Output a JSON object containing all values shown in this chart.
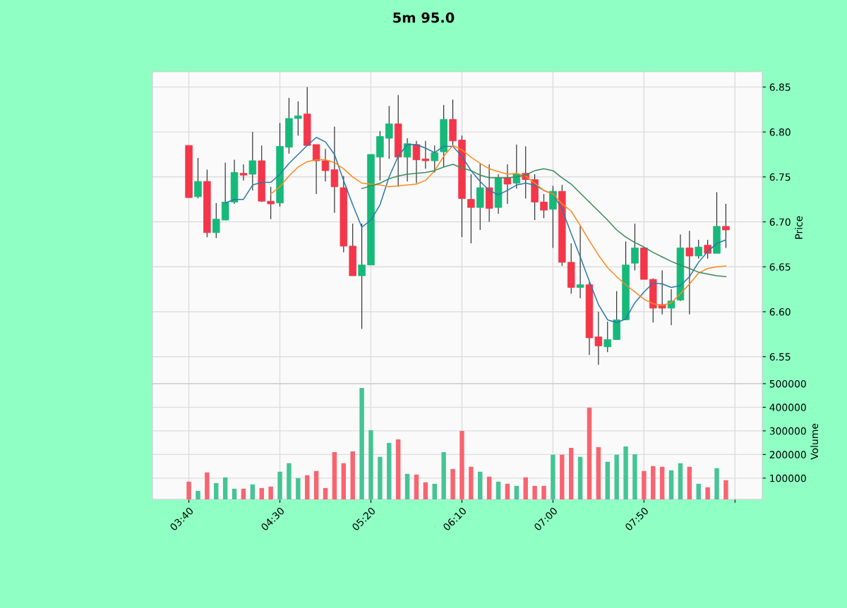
{
  "chart_data": [
    {
      "type": "candlestick",
      "title": "5m 95.0",
      "ylabel": "Price",
      "grid": true,
      "tick_labels": "y",
      "x": [
        3.6667,
        3.75,
        3.8333,
        3.9167,
        4,
        4.0833,
        4.1667,
        4.25,
        4.3333,
        4.4167,
        4.5,
        4.5833,
        4.6667,
        4.75,
        4.8333,
        4.9167,
        5,
        5.0833,
        5.1667,
        5.25,
        5.3333,
        5.4167,
        5.5,
        5.5833,
        5.6667,
        5.75,
        5.8333,
        5.9167,
        6,
        6.0833,
        6.1667,
        6.25,
        6.3333,
        6.4167,
        6.5,
        6.5833,
        6.6667,
        6.75,
        6.8333,
        6.9167,
        7,
        7.0833,
        7.1667,
        7.25,
        7.3333,
        7.4167,
        7.5,
        7.5833,
        7.6667,
        7.75,
        7.8333,
        7.9167,
        8,
        8.0833,
        8.1667,
        8.25,
        8.3333,
        8.4167,
        8.5,
        8.5833
      ],
      "ohlc": [
        [
          6.785,
          6.785,
          6.727,
          6.727
        ],
        [
          6.728,
          6.771,
          6.726,
          6.745
        ],
        [
          6.745,
          6.758,
          6.683,
          6.688
        ],
        [
          6.688,
          6.721,
          6.682,
          6.703
        ],
        [
          6.702,
          6.766,
          6.702,
          6.722
        ],
        [
          6.722,
          6.769,
          6.72,
          6.755
        ],
        [
          6.754,
          6.764,
          6.746,
          6.752
        ],
        [
          6.753,
          6.8,
          6.735,
          6.768
        ],
        [
          6.768,
          6.785,
          6.722,
          6.723
        ],
        [
          6.723,
          6.739,
          6.703,
          6.72
        ],
        [
          6.721,
          6.81,
          6.717,
          6.784
        ],
        [
          6.783,
          6.838,
          6.776,
          6.815
        ],
        [
          6.815,
          6.834,
          6.796,
          6.818
        ],
        [
          6.82,
          6.85,
          6.785,
          6.785
        ],
        [
          6.786,
          6.786,
          6.731,
          6.768
        ],
        [
          6.768,
          6.781,
          6.745,
          6.757
        ],
        [
          6.758,
          6.806,
          6.71,
          6.739
        ],
        [
          6.738,
          6.751,
          6.666,
          6.673
        ],
        [
          6.673,
          6.698,
          6.64,
          6.64
        ],
        [
          6.64,
          6.698,
          6.581,
          6.652
        ],
        [
          6.652,
          6.775,
          6.652,
          6.775
        ],
        [
          6.772,
          6.801,
          6.746,
          6.795
        ],
        [
          6.793,
          6.829,
          6.77,
          6.809
        ],
        [
          6.809,
          6.841,
          6.739,
          6.772
        ],
        [
          6.772,
          6.793,
          6.745,
          6.787
        ],
        [
          6.786,
          6.79,
          6.743,
          6.769
        ],
        [
          6.77,
          6.79,
          6.759,
          6.768
        ],
        [
          6.768,
          6.785,
          6.755,
          6.777
        ],
        [
          6.778,
          6.83,
          6.761,
          6.814
        ],
        [
          6.814,
          6.836,
          6.784,
          6.79
        ],
        [
          6.791,
          6.796,
          6.683,
          6.726
        ],
        [
          6.725,
          6.753,
          6.676,
          6.716
        ],
        [
          6.716,
          6.765,
          6.691,
          6.738
        ],
        [
          6.738,
          6.764,
          6.7,
          6.715
        ],
        [
          6.716,
          6.753,
          6.709,
          6.749
        ],
        [
          6.749,
          6.764,
          6.72,
          6.742
        ],
        [
          6.743,
          6.786,
          6.737,
          6.753
        ],
        [
          6.754,
          6.784,
          6.726,
          6.747
        ],
        [
          6.747,
          6.753,
          6.702,
          6.722
        ],
        [
          6.722,
          6.731,
          6.704,
          6.713
        ],
        [
          6.714,
          6.74,
          6.671,
          6.734
        ],
        [
          6.734,
          6.741,
          6.651,
          6.655
        ],
        [
          6.655,
          6.676,
          6.62,
          6.627
        ],
        [
          6.627,
          6.696,
          6.615,
          6.63
        ],
        [
          6.63,
          6.633,
          6.552,
          6.571
        ],
        [
          6.572,
          6.6,
          6.541,
          6.562
        ],
        [
          6.561,
          6.589,
          6.555,
          6.569
        ],
        [
          6.569,
          6.623,
          6.569,
          6.591
        ],
        [
          6.591,
          6.678,
          6.591,
          6.652
        ],
        [
          6.654,
          6.698,
          6.646,
          6.671
        ],
        [
          6.671,
          6.671,
          6.636,
          6.636
        ],
        [
          6.636,
          6.637,
          6.588,
          6.604
        ],
        [
          6.608,
          6.646,
          6.597,
          6.604
        ],
        [
          6.604,
          6.625,
          6.585,
          6.612
        ],
        [
          6.613,
          6.686,
          6.612,
          6.671
        ],
        [
          6.671,
          6.69,
          6.597,
          6.662
        ],
        [
          6.662,
          6.68,
          6.659,
          6.672
        ],
        [
          6.674,
          6.68,
          6.659,
          6.665
        ],
        [
          6.665,
          6.733,
          6.665,
          6.695
        ],
        [
          6.695,
          6.72,
          6.671,
          6.691
        ]
      ],
      "colors": [
        "#f4364a",
        "#16b97a",
        "#f4364a",
        "#16b97a",
        "#16b97a",
        "#16b97a",
        "#f4364a",
        "#16b97a",
        "#f4364a",
        "#f4364a",
        "#16b97a",
        "#16b97a",
        "#16b97a",
        "#f4364a",
        "#f4364a",
        "#f4364a",
        "#f4364a",
        "#f4364a",
        "#f4364a",
        "#16b97a",
        "#16b97a",
        "#16b97a",
        "#16b97a",
        "#f4364a",
        "#16b97a",
        "#f4364a",
        "#f4364a",
        "#16b97a",
        "#16b97a",
        "#f4364a",
        "#f4364a",
        "#f4364a",
        "#16b97a",
        "#f4364a",
        "#16b97a",
        "#f4364a",
        "#16b97a",
        "#f4364a",
        "#f4364a",
        "#f4364a",
        "#16b97a",
        "#f4364a",
        "#f4364a",
        "#16b97a",
        "#f4364a",
        "#f4364a",
        "#16b97a",
        "#16b97a",
        "#16b97a",
        "#16b97a",
        "#f4364a",
        "#f4364a",
        "#f4364a",
        "#16b97a",
        "#16b97a",
        "#f4364a",
        "#16b97a",
        "#f4364a",
        "#16b97a",
        "#f4364a"
      ],
      "series": [
        {
          "type": "line",
          "color": "#2a7aa8",
          "x": [
            4,
            4.0833,
            4.1667,
            4.25,
            4.3333,
            4.4167,
            4.5,
            4.5833,
            4.6667,
            4.75,
            4.8333,
            4.9167,
            5,
            5.0833,
            5.1667,
            5.25,
            5.3333,
            5.4167,
            5.5,
            5.5833,
            5.6667,
            5.75,
            5.8333,
            5.9167,
            6,
            6.0833,
            6.1667,
            6.25,
            6.3333,
            6.4167,
            6.5,
            6.5833,
            6.6667,
            6.75,
            6.8333,
            6.9167,
            7,
            7.0833,
            7.1667,
            7.25,
            7.3333,
            7.4167,
            7.5,
            7.5833,
            7.6667,
            7.75,
            7.8333,
            7.9167,
            8,
            8.0833,
            8.1667,
            8.25,
            8.3333,
            8.4167,
            8.5,
            8.5833
          ],
          "values": [
            6.721,
            6.725,
            6.725,
            6.741,
            6.744,
            6.744,
            6.753,
            6.765,
            6.775,
            6.785,
            6.794,
            6.789,
            6.775,
            6.746,
            6.719,
            6.694,
            6.702,
            6.719,
            6.75,
            6.773,
            6.786,
            6.786,
            6.782,
            6.777,
            6.784,
            6.784,
            6.773,
            6.757,
            6.745,
            6.735,
            6.73,
            6.735,
            6.741,
            6.743,
            6.741,
            6.735,
            6.731,
            6.714,
            6.687,
            6.661,
            6.634,
            6.608,
            6.591,
            6.588,
            6.592,
            6.61,
            6.622,
            6.632,
            6.631,
            6.627,
            6.629,
            6.639,
            6.655,
            6.667,
            6.676,
            6.68
          ]
        },
        {
          "type": "line",
          "color": "#ff8a1c",
          "x": [
            4.4167,
            4.5,
            4.5833,
            4.6667,
            4.75,
            4.8333,
            4.9167,
            5,
            5.0833,
            5.1667,
            5.25,
            5.3333,
            5.4167,
            5.5,
            5.5833,
            5.6667,
            5.75,
            5.8333,
            5.9167,
            6,
            6.0833,
            6.1667,
            6.25,
            6.3333,
            6.4167,
            6.5,
            6.5833,
            6.6667,
            6.75,
            6.8333,
            6.9167,
            7,
            7.0833,
            7.1667,
            7.25,
            7.3333,
            7.4167,
            7.5,
            7.5833,
            7.6667,
            7.75,
            7.8333,
            7.9167,
            8,
            8.0833,
            8.1667,
            8.25,
            8.3333,
            8.4167,
            8.5,
            8.5833
          ],
          "values": [
            6.731,
            6.739,
            6.751,
            6.761,
            6.767,
            6.769,
            6.769,
            6.766,
            6.759,
            6.75,
            6.743,
            6.742,
            6.741,
            6.739,
            6.74,
            6.741,
            6.742,
            6.746,
            6.757,
            6.773,
            6.785,
            6.78,
            6.772,
            6.765,
            6.759,
            6.756,
            6.753,
            6.754,
            6.751,
            6.743,
            6.735,
            6.731,
            6.72,
            6.712,
            6.696,
            6.679,
            6.663,
            6.649,
            6.639,
            6.63,
            6.622,
            6.614,
            6.609,
            6.607,
            6.61,
            6.62,
            6.631,
            6.643,
            6.648,
            6.65,
            6.651
          ]
        },
        {
          "type": "line",
          "color": "#3b8a5c",
          "x": [
            5.25,
            5.3333,
            5.4167,
            5.5,
            5.5833,
            5.6667,
            5.75,
            5.8333,
            5.9167,
            6,
            6.0833,
            6.1667,
            6.25,
            6.3333,
            6.4167,
            6.5,
            6.5833,
            6.6667,
            6.75,
            6.8333,
            6.9167,
            7,
            7.0833,
            7.1667,
            7.25,
            7.3333,
            7.4167,
            7.5,
            7.5833,
            7.6667,
            7.75,
            7.8333,
            7.9167,
            8,
            8.0833,
            8.1667,
            8.25,
            8.3333,
            8.4167,
            8.5,
            8.5833
          ],
          "values": [
            6.737,
            6.74,
            6.743,
            6.748,
            6.751,
            6.753,
            6.754,
            6.755,
            6.757,
            6.761,
            6.764,
            6.76,
            6.757,
            6.752,
            6.749,
            6.749,
            6.749,
            6.75,
            6.752,
            6.757,
            6.759,
            6.757,
            6.749,
            6.742,
            6.732,
            6.722,
            6.712,
            6.702,
            6.691,
            6.683,
            6.677,
            6.672,
            6.666,
            6.661,
            6.656,
            6.652,
            6.648,
            6.644,
            6.642,
            6.64,
            6.639
          ]
        }
      ],
      "xlim": [
        3.3333,
        8.9167
      ],
      "xticks": [
        {
          "value": 3.6667,
          "label": null
        },
        {
          "value": 4.5,
          "label": null
        },
        {
          "value": 5.3333,
          "label": null
        },
        {
          "value": 6.1667,
          "label": null
        },
        {
          "value": 7,
          "label": null
        },
        {
          "value": 7.8333,
          "label": null
        },
        {
          "value": 8.6667,
          "label": null
        }
      ],
      "ylim": [
        6.52,
        6.867
      ],
      "yticks": [
        6.55,
        {
          "value": 6.6,
          "label": "6.60"
        },
        6.65,
        {
          "value": 6.7,
          "label": "6.70"
        },
        6.75,
        {
          "value": 6.8,
          "label": "6.80"
        },
        6.85
      ]
    },
    {
      "type": "bar",
      "ylabel": "Volume",
      "grid": true,
      "x": [
        3.6667,
        3.75,
        3.8333,
        3.9167,
        4,
        4.0833,
        4.1667,
        4.25,
        4.3333,
        4.4167,
        4.5,
        4.5833,
        4.6667,
        4.75,
        4.8333,
        4.9167,
        5,
        5.0833,
        5.1667,
        5.25,
        5.3333,
        5.4167,
        5.5,
        5.5833,
        5.6667,
        5.75,
        5.8333,
        5.9167,
        6,
        6.0833,
        6.1667,
        6.25,
        6.3333,
        6.4167,
        6.5,
        6.5833,
        6.6667,
        6.75,
        6.8333,
        6.9167,
        7,
        7.0833,
        7.1667,
        7.25,
        7.3333,
        7.4167,
        7.5,
        7.5833,
        7.6667,
        7.75,
        7.8333,
        7.9167,
        8,
        8.0833,
        8.1667,
        8.25,
        8.3333,
        8.4167,
        8.5,
        8.5833
      ],
      "values": [
        85000,
        46000,
        124000,
        79000,
        103000,
        55000,
        55000,
        73000,
        58000,
        64000,
        127000,
        163000,
        100000,
        112000,
        130000,
        58000,
        210000,
        163000,
        213000,
        482000,
        303000,
        190000,
        249000,
        264000,
        118000,
        115000,
        82000,
        76000,
        210000,
        139000,
        300000,
        148000,
        127000,
        106000,
        85000,
        76000,
        67000,
        103000,
        67000,
        67000,
        199000,
        199000,
        228000,
        190000,
        398000,
        231000,
        169000,
        199000,
        234000,
        201000,
        130000,
        151000,
        148000,
        133000,
        163000,
        148000,
        76000,
        61000,
        142000,
        91000
      ],
      "colors": [
        "#f8646f",
        "#45c495",
        "#f8646f",
        "#45c495",
        "#45c495",
        "#45c495",
        "#f8646f",
        "#45c495",
        "#f8646f",
        "#f8646f",
        "#45c495",
        "#45c495",
        "#45c495",
        "#f8646f",
        "#f8646f",
        "#f8646f",
        "#f8646f",
        "#f8646f",
        "#f8646f",
        "#45c495",
        "#45c495",
        "#45c495",
        "#45c495",
        "#f8646f",
        "#45c495",
        "#f8646f",
        "#f8646f",
        "#45c495",
        "#45c495",
        "#f8646f",
        "#f8646f",
        "#f8646f",
        "#45c495",
        "#f8646f",
        "#45c495",
        "#f8646f",
        "#45c495",
        "#f8646f",
        "#f8646f",
        "#f8646f",
        "#45c495",
        "#f8646f",
        "#f8646f",
        "#45c495",
        "#f8646f",
        "#f8646f",
        "#45c495",
        "#45c495",
        "#45c495",
        "#45c495",
        "#f8646f",
        "#f8646f",
        "#f8646f",
        "#45c495",
        "#45c495",
        "#f8646f",
        "#45c495",
        "#f8646f",
        "#45c495",
        "#f8646f"
      ],
      "xlim": [
        3.3333,
        8.9167
      ],
      "xticks": [
        {
          "value": 3.6667,
          "label": "03:40"
        },
        {
          "value": 4.5,
          "label": "04:30"
        },
        {
          "value": 5.3333,
          "label": "05:20"
        },
        {
          "value": 6.1667,
          "label": "06:10"
        },
        {
          "value": 7,
          "label": "07:00"
        },
        {
          "value": 7.8333,
          "label": "07:50"
        },
        {
          "value": 8.6667,
          "label": null
        }
      ],
      "ylim": [
        10000,
        500000
      ],
      "yticks": [
        100000,
        200000,
        300000,
        400000,
        500000
      ]
    }
  ]
}
